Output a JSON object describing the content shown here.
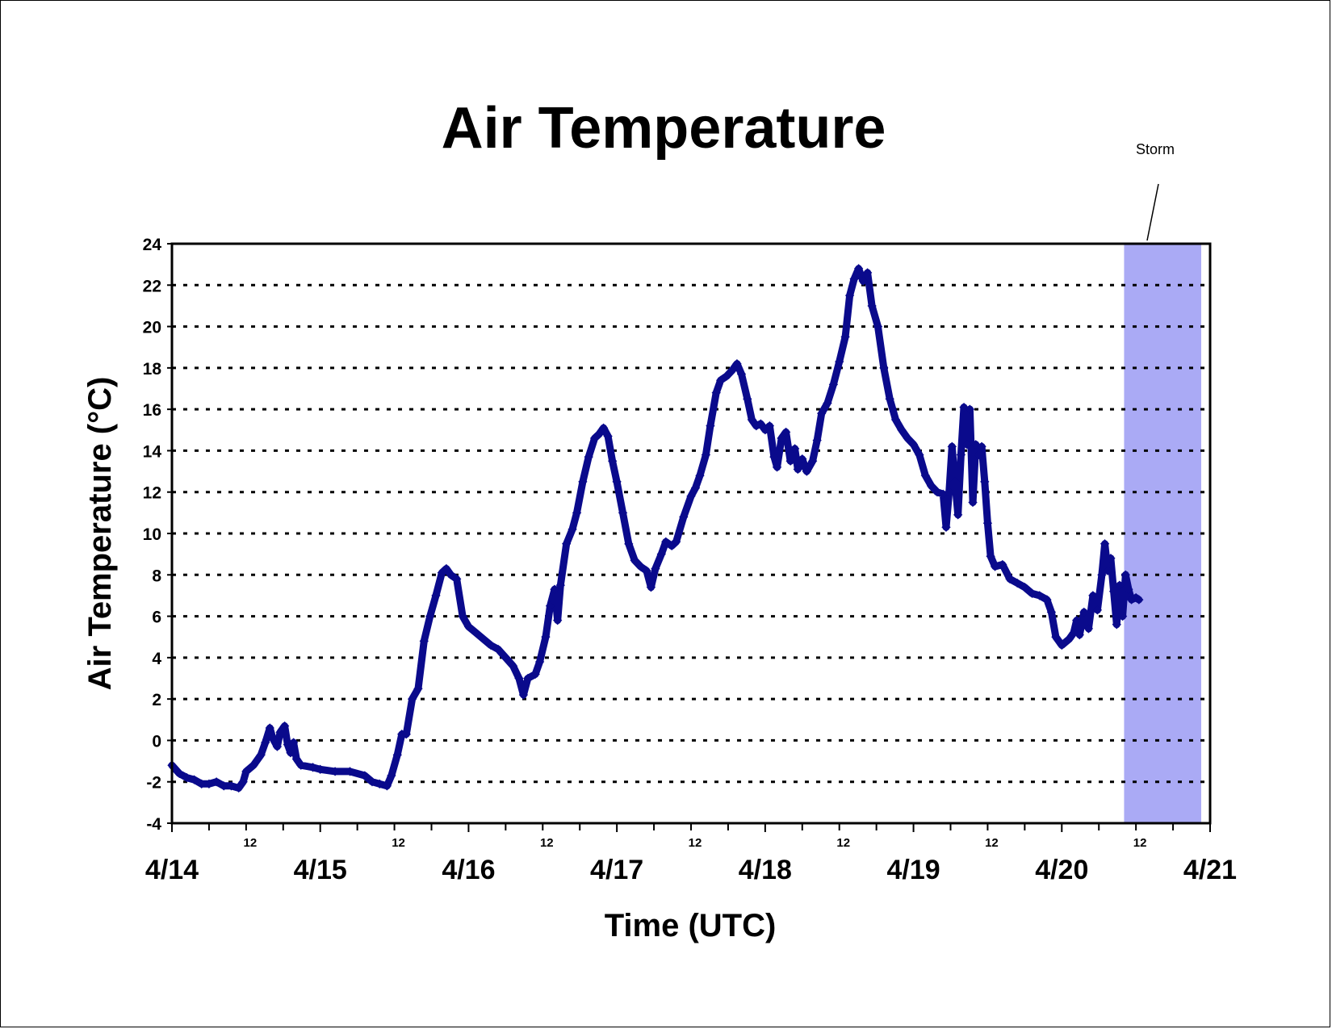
{
  "chart_data": {
    "type": "line",
    "title": "Air Temperature",
    "xlabel": "Time (UTC)",
    "ylabel": "Air Temperature (°C)",
    "ylim": [
      -4,
      24
    ],
    "yticks": [
      -4,
      -2,
      0,
      2,
      4,
      6,
      8,
      10,
      12,
      14,
      16,
      18,
      20,
      22,
      24
    ],
    "xlim_days": [
      0,
      7
    ],
    "x_major_labels": [
      "4/14",
      "4/15",
      "4/16",
      "4/17",
      "4/18",
      "4/19",
      "4/20",
      "4/21"
    ],
    "x_minor_label": "12",
    "grid": "horizontal dotted",
    "legend": "none",
    "annotation": {
      "text": "Storm",
      "x_start": 6.42,
      "x_end": 6.94
    },
    "colors": {
      "line": "#0a0a8c",
      "storm": "#aaaaf5"
    },
    "series": [
      {
        "x_unit": "days from 4/14 00 UTC",
        "points": [
          [
            0.0,
            -1.2
          ],
          [
            0.05,
            -1.6
          ],
          [
            0.1,
            -1.8
          ],
          [
            0.15,
            -1.9
          ],
          [
            0.2,
            -2.1
          ],
          [
            0.25,
            -2.1
          ],
          [
            0.3,
            -2.0
          ],
          [
            0.35,
            -2.2
          ],
          [
            0.4,
            -2.2
          ],
          [
            0.45,
            -2.3
          ],
          [
            0.48,
            -2.0
          ],
          [
            0.5,
            -1.5
          ],
          [
            0.55,
            -1.2
          ],
          [
            0.6,
            -0.7
          ],
          [
            0.63,
            -0.1
          ],
          [
            0.66,
            0.6
          ],
          [
            0.68,
            0.1
          ],
          [
            0.71,
            -0.3
          ],
          [
            0.73,
            0.4
          ],
          [
            0.76,
            0.7
          ],
          [
            0.78,
            -0.2
          ],
          [
            0.8,
            -0.6
          ],
          [
            0.82,
            -0.1
          ],
          [
            0.84,
            -0.9
          ],
          [
            0.87,
            -1.2
          ],
          [
            0.95,
            -1.3
          ],
          [
            1.0,
            -1.4
          ],
          [
            1.1,
            -1.5
          ],
          [
            1.2,
            -1.5
          ],
          [
            1.3,
            -1.7
          ],
          [
            1.35,
            -2.0
          ],
          [
            1.4,
            -2.1
          ],
          [
            1.45,
            -2.2
          ],
          [
            1.48,
            -1.7
          ],
          [
            1.52,
            -0.7
          ],
          [
            1.55,
            0.3
          ],
          [
            1.58,
            0.3
          ],
          [
            1.62,
            2.0
          ],
          [
            1.66,
            2.5
          ],
          [
            1.7,
            4.8
          ],
          [
            1.74,
            6.0
          ],
          [
            1.78,
            7.0
          ],
          [
            1.82,
            8.1
          ],
          [
            1.85,
            8.3
          ],
          [
            1.88,
            8.0
          ],
          [
            1.92,
            7.8
          ],
          [
            1.96,
            6.0
          ],
          [
            2.0,
            5.5
          ],
          [
            2.05,
            5.2
          ],
          [
            2.1,
            4.9
          ],
          [
            2.15,
            4.6
          ],
          [
            2.2,
            4.4
          ],
          [
            2.25,
            4.0
          ],
          [
            2.3,
            3.6
          ],
          [
            2.34,
            3.0
          ],
          [
            2.37,
            2.2
          ],
          [
            2.4,
            3.0
          ],
          [
            2.45,
            3.2
          ],
          [
            2.48,
            3.8
          ],
          [
            2.52,
            5.0
          ],
          [
            2.55,
            6.5
          ],
          [
            2.58,
            7.3
          ],
          [
            2.6,
            5.8
          ],
          [
            2.62,
            7.5
          ],
          [
            2.66,
            9.5
          ],
          [
            2.7,
            10.2
          ],
          [
            2.73,
            11.0
          ],
          [
            2.77,
            12.5
          ],
          [
            2.81,
            13.7
          ],
          [
            2.85,
            14.6
          ],
          [
            2.88,
            14.8
          ],
          [
            2.91,
            15.1
          ],
          [
            2.94,
            14.7
          ],
          [
            2.97,
            13.5
          ],
          [
            3.0,
            12.5
          ],
          [
            3.04,
            11.0
          ],
          [
            3.08,
            9.5
          ],
          [
            3.12,
            8.7
          ],
          [
            3.16,
            8.4
          ],
          [
            3.2,
            8.2
          ],
          [
            3.23,
            7.4
          ],
          [
            3.26,
            8.3
          ],
          [
            3.3,
            9.0
          ],
          [
            3.33,
            9.6
          ],
          [
            3.37,
            9.4
          ],
          [
            3.4,
            9.6
          ],
          [
            3.45,
            10.8
          ],
          [
            3.5,
            11.8
          ],
          [
            3.53,
            12.2
          ],
          [
            3.56,
            12.8
          ],
          [
            3.6,
            13.8
          ],
          [
            3.63,
            15.2
          ],
          [
            3.67,
            16.8
          ],
          [
            3.7,
            17.4
          ],
          [
            3.74,
            17.6
          ],
          [
            3.78,
            17.9
          ],
          [
            3.81,
            18.2
          ],
          [
            3.84,
            17.7
          ],
          [
            3.88,
            16.5
          ],
          [
            3.91,
            15.5
          ],
          [
            3.94,
            15.2
          ],
          [
            3.97,
            15.3
          ],
          [
            4.0,
            15.0
          ],
          [
            4.03,
            15.2
          ],
          [
            4.06,
            13.7
          ],
          [
            4.08,
            13.2
          ],
          [
            4.11,
            14.6
          ],
          [
            4.14,
            14.9
          ],
          [
            4.17,
            13.5
          ],
          [
            4.2,
            14.1
          ],
          [
            4.22,
            13.1
          ],
          [
            4.25,
            13.6
          ],
          [
            4.28,
            13.0
          ],
          [
            4.32,
            13.5
          ],
          [
            4.35,
            14.5
          ],
          [
            4.38,
            15.8
          ],
          [
            4.42,
            16.3
          ],
          [
            4.46,
            17.2
          ],
          [
            4.5,
            18.3
          ],
          [
            4.54,
            19.5
          ],
          [
            4.57,
            21.5
          ],
          [
            4.6,
            22.3
          ],
          [
            4.63,
            22.8
          ],
          [
            4.66,
            22.2
          ],
          [
            4.69,
            22.6
          ],
          [
            4.72,
            21.0
          ],
          [
            4.76,
            20.0
          ],
          [
            4.8,
            18.0
          ],
          [
            4.84,
            16.5
          ],
          [
            4.88,
            15.5
          ],
          [
            4.92,
            15.0
          ],
          [
            4.96,
            14.6
          ],
          [
            5.0,
            14.3
          ],
          [
            5.04,
            13.8
          ],
          [
            5.08,
            12.8
          ],
          [
            5.12,
            12.3
          ],
          [
            5.16,
            12.0
          ],
          [
            5.2,
            11.9
          ],
          [
            5.22,
            10.3
          ],
          [
            5.24,
            12.0
          ],
          [
            5.26,
            14.2
          ],
          [
            5.28,
            12.5
          ],
          [
            5.3,
            10.9
          ],
          [
            5.32,
            13.8
          ],
          [
            5.34,
            16.1
          ],
          [
            5.36,
            14.3
          ],
          [
            5.38,
            16.0
          ],
          [
            5.4,
            11.5
          ],
          [
            5.42,
            14.3
          ],
          [
            5.44,
            13.8
          ],
          [
            5.46,
            14.2
          ],
          [
            5.48,
            12.5
          ],
          [
            5.5,
            10.5
          ],
          [
            5.52,
            8.9
          ],
          [
            5.55,
            8.4
          ],
          [
            5.6,
            8.5
          ],
          [
            5.65,
            7.8
          ],
          [
            5.7,
            7.6
          ],
          [
            5.75,
            7.4
          ],
          [
            5.8,
            7.1
          ],
          [
            5.85,
            7.0
          ],
          [
            5.9,
            6.8
          ],
          [
            5.93,
            6.2
          ],
          [
            5.96,
            5.0
          ],
          [
            6.0,
            4.6
          ],
          [
            6.05,
            4.9
          ],
          [
            6.08,
            5.2
          ],
          [
            6.1,
            5.8
          ],
          [
            6.12,
            5.1
          ],
          [
            6.15,
            6.2
          ],
          [
            6.18,
            5.4
          ],
          [
            6.21,
            7.0
          ],
          [
            6.24,
            6.3
          ],
          [
            6.27,
            8.0
          ],
          [
            6.29,
            9.5
          ],
          [
            6.31,
            8.2
          ],
          [
            6.33,
            8.8
          ],
          [
            6.35,
            7.2
          ],
          [
            6.37,
            5.6
          ],
          [
            6.39,
            7.5
          ],
          [
            6.41,
            6.0
          ],
          [
            6.43,
            8.0
          ],
          [
            6.45,
            7.3
          ],
          [
            6.47,
            6.8
          ],
          [
            6.5,
            6.9
          ],
          [
            6.52,
            6.8
          ]
        ]
      }
    ]
  }
}
